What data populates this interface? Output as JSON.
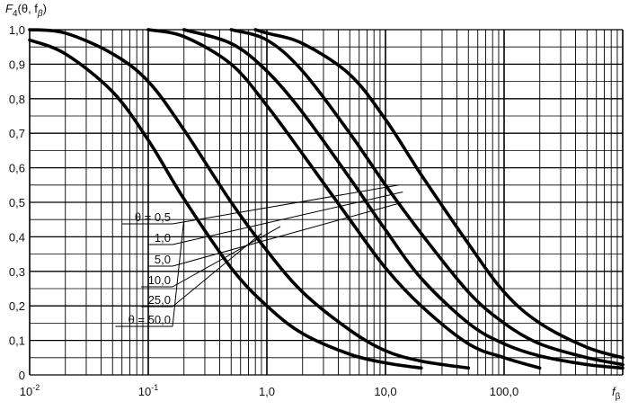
{
  "chart_data": {
    "type": "line",
    "ylabel_main": "F",
    "ylabel_sub": "4",
    "ylabel_args": "(θ, f",
    "ylabel_args_sub": "β",
    "ylabel_close": ")",
    "xlabel_main": "f",
    "xlabel_sub": "β",
    "x_scale": "log",
    "xlim": [
      0.01,
      1000
    ],
    "ylim": [
      0,
      1.0
    ],
    "grid": true,
    "x_tick_labels": [
      {
        "value": 0.01,
        "base": "10",
        "exp": "-2"
      },
      {
        "value": 0.1,
        "base": "10",
        "exp": "-1"
      },
      {
        "value": 1,
        "base": "1,0",
        "exp": ""
      },
      {
        "value": 10,
        "base": "10,0",
        "exp": ""
      },
      {
        "value": 100,
        "base": "100,0",
        "exp": ""
      }
    ],
    "y_tick_labels": [
      {
        "value": 0.0,
        "text": "0"
      },
      {
        "value": 0.1,
        "text": "0,1"
      },
      {
        "value": 0.2,
        "text": "0,2"
      },
      {
        "value": 0.3,
        "text": "0,3"
      },
      {
        "value": 0.4,
        "text": "0,4"
      },
      {
        "value": 0.5,
        "text": "0,5"
      },
      {
        "value": 0.6,
        "text": "0,6"
      },
      {
        "value": 0.7,
        "text": "0,7"
      },
      {
        "value": 0.8,
        "text": "0,8"
      },
      {
        "value": 0.9,
        "text": "0,9"
      },
      {
        "value": 1.0,
        "text": "1,0"
      }
    ],
    "series": [
      {
        "name": "θ = 0,5",
        "theta": 0.5,
        "x": [
          0.01,
          0.02,
          0.05,
          0.1,
          0.2,
          0.5,
          1.0,
          2.0,
          5.0,
          10.0,
          20.0
        ],
        "y": [
          0.97,
          0.93,
          0.82,
          0.68,
          0.51,
          0.31,
          0.2,
          0.12,
          0.06,
          0.035,
          0.02
        ]
      },
      {
        "name": "1,0",
        "theta": 1.0,
        "x": [
          0.01,
          0.02,
          0.05,
          0.1,
          0.2,
          0.5,
          1.0,
          2.0,
          5.0,
          10.0,
          20.0,
          50.0
        ],
        "y": [
          1.0,
          0.99,
          0.93,
          0.85,
          0.71,
          0.5,
          0.36,
          0.24,
          0.13,
          0.07,
          0.04,
          0.02
        ]
      },
      {
        "name": "5,0",
        "theta": 5.0,
        "x": [
          0.1,
          0.2,
          0.5,
          1.0,
          2.0,
          5.0,
          10.0,
          20.0,
          50.0,
          100.0,
          200.0
        ],
        "y": [
          1.0,
          0.98,
          0.9,
          0.78,
          0.64,
          0.45,
          0.31,
          0.2,
          0.09,
          0.05,
          0.02
        ]
      },
      {
        "name": "10,0",
        "theta": 10.0,
        "x": [
          0.2,
          0.5,
          1.0,
          2.0,
          5.0,
          10.0,
          20.0,
          50.0,
          100.0,
          200.0,
          500.0,
          1000.0
        ],
        "y": [
          1.0,
          0.96,
          0.88,
          0.76,
          0.57,
          0.42,
          0.28,
          0.15,
          0.09,
          0.055,
          0.03,
          0.02
        ]
      },
      {
        "name": "25,0",
        "theta": 25.0,
        "x": [
          0.5,
          1.0,
          2.0,
          5.0,
          10.0,
          20.0,
          50.0,
          100.0,
          200.0,
          500.0,
          1000.0
        ],
        "y": [
          1.0,
          0.97,
          0.88,
          0.7,
          0.55,
          0.41,
          0.24,
          0.15,
          0.09,
          0.05,
          0.03
        ]
      },
      {
        "name": "θ = 50,0",
        "theta": 50.0,
        "x": [
          0.8,
          1.0,
          2.0,
          5.0,
          10.0,
          20.0,
          50.0,
          100.0,
          200.0,
          500.0,
          1000.0
        ],
        "y": [
          1.0,
          0.99,
          0.96,
          0.87,
          0.74,
          0.58,
          0.38,
          0.24,
          0.15,
          0.08,
          0.05
        ]
      }
    ],
    "curve_labels": [
      {
        "text": "θ = 0,5",
        "series": 5,
        "target_x": 13.0,
        "target_y": 0.55
      },
      {
        "text": "1,0",
        "series": 4,
        "target_x": 14.0,
        "target_y": 0.53
      },
      {
        "text": "5,0",
        "series": 3,
        "target_x": 14.0,
        "target_y": 0.5
      },
      {
        "text": "10,0",
        "series": 2,
        "target_x": 1.3,
        "target_y": 0.43
      },
      {
        "text": "25,0",
        "series": 1,
        "target_x": 0.9,
        "target_y": 0.41
      },
      {
        "text": "θ = 50,0",
        "series": 0,
        "target_x": 0.2,
        "target_y": 0.45
      }
    ]
  }
}
